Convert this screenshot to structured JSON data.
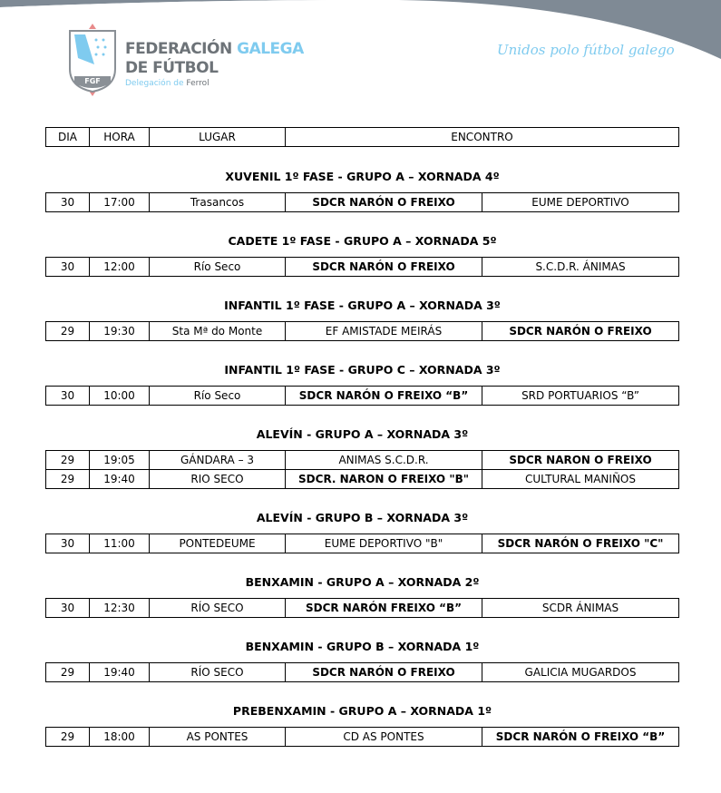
{
  "header": {
    "org_line1a": "FEDERACIÓN",
    "org_line1b": "GALEGA",
    "org_line2": "DE FÚTBOL",
    "deleg_a": "Delegación de",
    "deleg_b": "Ferrol",
    "logo_text": "FGF",
    "slogan": "Unidos polo fútbol galego"
  },
  "colors": {
    "accent": "#7fcbef",
    "gray": "#6d7378",
    "banner": "#7f8a95"
  },
  "columns": [
    "DIA",
    "HORA",
    "LUGAR",
    "ENCONTRO"
  ],
  "sections": [
    {
      "title": "XUVENIL 1º FASE - GRUPO A – XORNADA 4º",
      "rows": [
        {
          "cells": [
            "30",
            "17:00",
            "Trasancos",
            "SDCR NARÓN O FREIXO",
            "EUME DEPORTIVO"
          ],
          "bold": [
            3
          ]
        }
      ]
    },
    {
      "title": "CADETE 1º FASE - GRUPO A – XORNADA 5º",
      "rows": [
        {
          "cells": [
            "30",
            "12:00",
            "Río Seco",
            "SDCR NARÓN O FREIXO",
            "S.C.D.R. ÁNIMAS"
          ],
          "bold": [
            3
          ]
        }
      ]
    },
    {
      "title": "INFANTIL 1º FASE - GRUPO A – XORNADA 3º",
      "rows": [
        {
          "cells": [
            "29",
            "19:30",
            "Sta Mª do Monte",
            "EF AMISTADE MEIRÁS",
            "SDCR NARÓN O FREIXO"
          ],
          "bold": [
            4
          ]
        }
      ]
    },
    {
      "title": "INFANTIL 1º FASE - GRUPO C – XORNADA 3º",
      "rows": [
        {
          "cells": [
            "30",
            "10:00",
            "Río Seco",
            "SDCR NARÓN O FREIXO “B”",
            "SRD PORTUARIOS “B”"
          ],
          "bold": [
            3
          ]
        }
      ]
    },
    {
      "title": "ALEVÍN - GRUPO A – XORNADA 3º",
      "rows": [
        {
          "cells": [
            "29",
            "19:05",
            "GÁNDARA – 3",
            "ANIMAS S.C.D.R.",
            "SDCR NARON O FREIXO"
          ],
          "bold": [
            4
          ]
        },
        {
          "cells": [
            "29",
            "19:40",
            "RIO SECO",
            "SDCR. NARON O FREIXO \"B\"",
            "CULTURAL  MANIÑOS"
          ],
          "bold": [
            3
          ]
        }
      ]
    },
    {
      "title": "ALEVÍN - GRUPO B – XORNADA 3º",
      "rows": [
        {
          "cells": [
            "30",
            "11:00",
            "PONTEDEUME",
            "EUME DEPORTIVO \"B\"",
            "SDCR NARÓN O FREIXO \"C\""
          ],
          "bold": [
            4
          ]
        }
      ]
    },
    {
      "title": "BENXAMIN - GRUPO A – XORNADA 2º",
      "rows": [
        {
          "cells": [
            "30",
            "12:30",
            "RÍO SECO",
            "SDCR NARÓN FREIXO “B”",
            "SCDR ÁNIMAS"
          ],
          "bold": [
            3
          ]
        }
      ]
    },
    {
      "title": "BENXAMIN - GRUPO B – XORNADA 1º",
      "rows": [
        {
          "cells": [
            "29",
            "19:40",
            "RÍO SECO",
            "SDCR NARÓN O FREIXO",
            "GALICIA MUGARDOS"
          ],
          "bold": [
            3
          ]
        }
      ]
    },
    {
      "title": "PREBENXAMIN - GRUPO A – XORNADA 1º",
      "rows": [
        {
          "cells": [
            "29",
            "18:00",
            "AS PONTES",
            "CD AS PONTES",
            "SDCR NARÓN O FREIXO “B”"
          ],
          "bold": [
            4
          ]
        }
      ]
    }
  ]
}
